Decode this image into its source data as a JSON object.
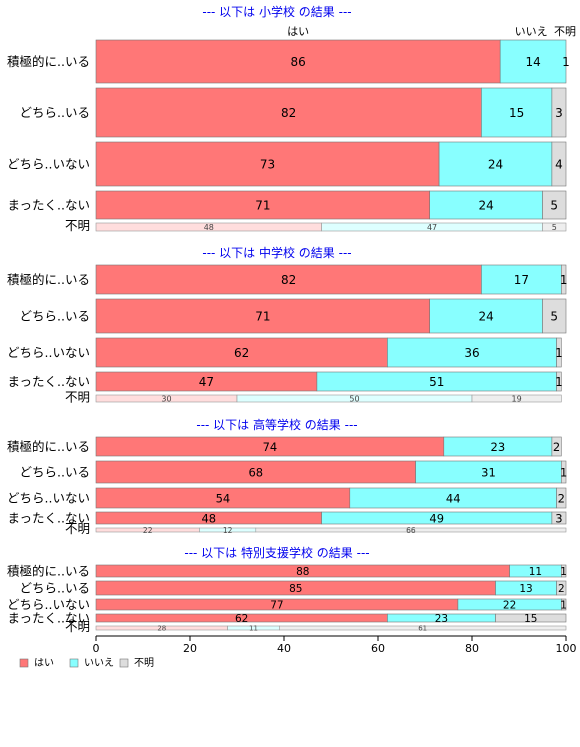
{
  "colors": {
    "yes": "#ff7777",
    "no": "#88ffff",
    "unknown": "#dddddd",
    "unknown_row_yes": "#ffdddd",
    "unknown_row_no": "#ddffff",
    "unknown_row_unknown": "#eeeeee",
    "title": "#0000ee",
    "border": "#777777"
  },
  "header": {
    "yes": "はい",
    "no": "いいえ",
    "unknown": "不明"
  },
  "legend": [
    {
      "key": "yes",
      "label": "はい"
    },
    {
      "key": "no",
      "label": "いいえ"
    },
    {
      "key": "unknown",
      "label": "不明"
    }
  ],
  "chart_data": {
    "type": "bar",
    "orientation": "horizontal-stacked-percent",
    "xlim": [
      0,
      100
    ],
    "xticks": [
      0,
      20,
      40,
      60,
      80,
      100
    ],
    "series_names": [
      "はい",
      "いいえ",
      "不明"
    ],
    "panels": [
      {
        "title": "--- 以下は 小学校 の結果 ---",
        "rows": [
          {
            "label": "積極的に..いる",
            "values": [
              86,
              14,
              1
            ]
          },
          {
            "label": "どちら..いる",
            "values": [
              82,
              15,
              3
            ]
          },
          {
            "label": "どちら..いない",
            "values": [
              73,
              24,
              4
            ]
          },
          {
            "label": "まったく..ない",
            "values": [
              71,
              24,
              5
            ]
          }
        ],
        "unknown_row": {
          "label": "不明",
          "values": [
            48,
            47,
            5
          ]
        }
      },
      {
        "title": "--- 以下は 中学校 の結果 ---",
        "rows": [
          {
            "label": "積極的に..いる",
            "values": [
              82,
              17,
              1
            ]
          },
          {
            "label": "どちら..いる",
            "values": [
              71,
              24,
              5
            ]
          },
          {
            "label": "どちら..いない",
            "values": [
              62,
              36,
              1
            ]
          },
          {
            "label": "まったく..ない",
            "values": [
              47,
              51,
              1
            ]
          }
        ],
        "unknown_row": {
          "label": "不明",
          "values": [
            30,
            50,
            19
          ]
        }
      },
      {
        "title": "--- 以下は 高等学校 の結果 ---",
        "rows": [
          {
            "label": "積極的に..いる",
            "values": [
              74,
              23,
              2
            ]
          },
          {
            "label": "どちら..いる",
            "values": [
              68,
              31,
              1
            ]
          },
          {
            "label": "どちら..いない",
            "values": [
              54,
              44,
              2
            ]
          },
          {
            "label": "まったく..ない",
            "values": [
              48,
              49,
              3
            ]
          }
        ],
        "unknown_row": {
          "label": "不明",
          "values": [
            22,
            12,
            66
          ]
        }
      },
      {
        "title": "--- 以下は 特別支援学校 の結果 ---",
        "rows": [
          {
            "label": "積極的に..いる",
            "values": [
              88,
              11,
              1
            ]
          },
          {
            "label": "どちら..いる",
            "values": [
              85,
              13,
              2
            ]
          },
          {
            "label": "どちら..いない",
            "values": [
              77,
              22,
              1
            ]
          },
          {
            "label": "まったく..ない",
            "values": [
              62,
              23,
              15
            ]
          }
        ],
        "unknown_row": {
          "label": "不明",
          "values": [
            28,
            11,
            61
          ]
        }
      }
    ]
  }
}
